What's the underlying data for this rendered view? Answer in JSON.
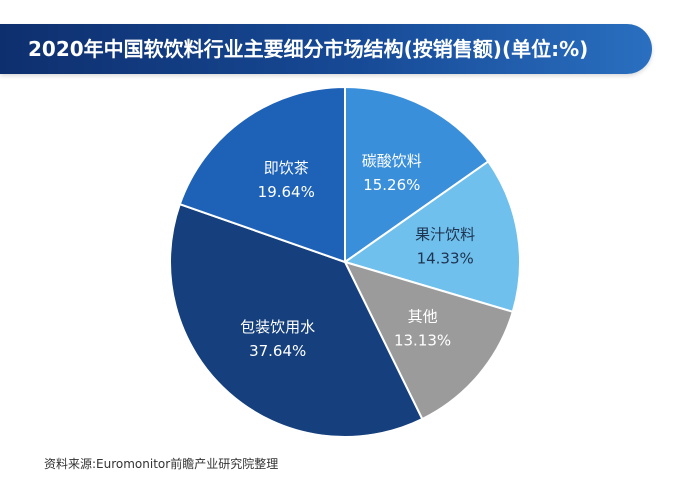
{
  "header": {
    "title": "2020年中国软饮料行业主要细分市场结构(按销售额)(单位:%)"
  },
  "footer": {
    "source": "资料来源:Euromonitor前瞻产业研究院整理"
  },
  "colors": {
    "title_dark": "#0e2f6e",
    "title_light": "#2a6fc0"
  },
  "chart_data": {
    "type": "pie",
    "title": "2020年中国软饮料行业主要细分市场结构(按销售额)(单位:%)",
    "unit": "%",
    "start_angle_deg": 0,
    "direction": "clockwise",
    "slices": [
      {
        "label": "碳酸饮料",
        "value": 15.26,
        "value_label": "15.26%",
        "color": "#3a8fdb",
        "text_color": "#ffffff"
      },
      {
        "label": "果汁饮料",
        "value": 14.33,
        "value_label": "14.33%",
        "color": "#6fc0ec",
        "text_color": "#1f3350"
      },
      {
        "label": "其他",
        "value": 13.13,
        "value_label": "13.13%",
        "color": "#9b9b9b",
        "text_color": "#ffffff"
      },
      {
        "label": "包装饮用水",
        "value": 37.64,
        "value_label": "37.64%",
        "color": "#153f7d",
        "text_color": "#ffffff"
      },
      {
        "label": "即饮茶",
        "value": 19.64,
        "value_label": "19.64%",
        "color": "#1e62b8",
        "text_color": "#ffffff"
      }
    ]
  }
}
